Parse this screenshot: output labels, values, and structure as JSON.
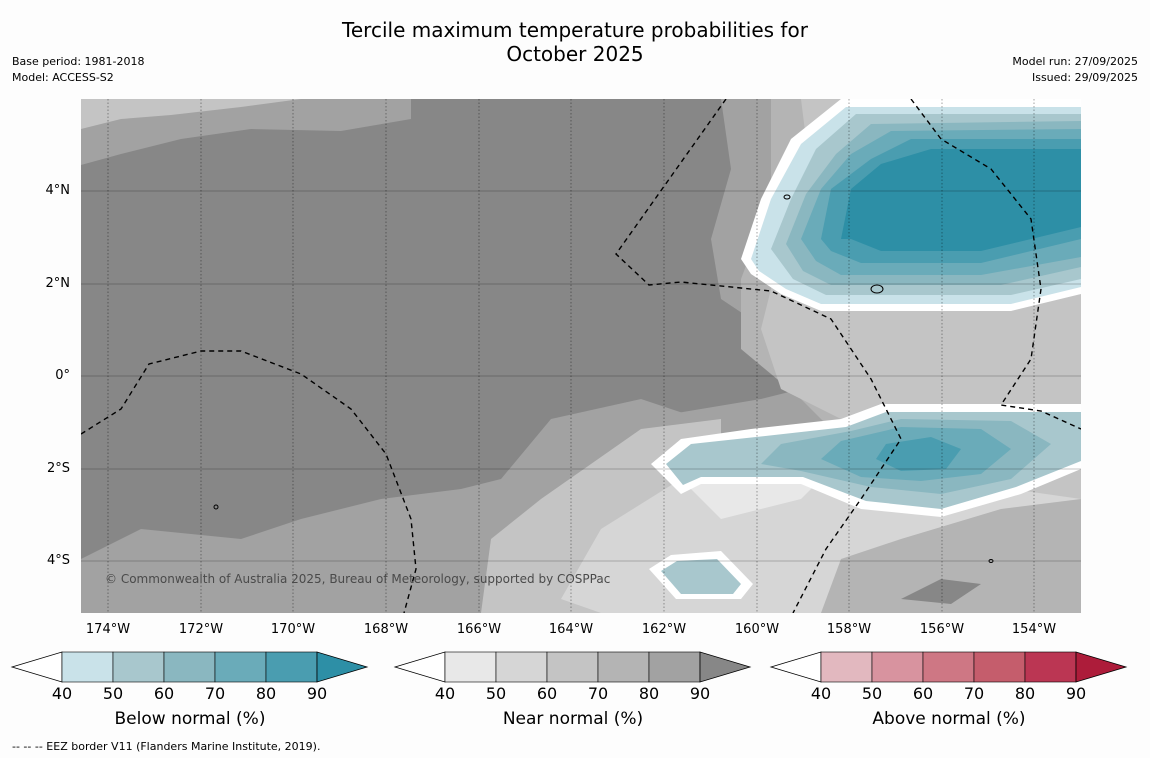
{
  "title_line1": "Tercile maximum temperature probabilities for",
  "title_line2": "October 2025",
  "meta": {
    "base_period": "Base period: 1981-2018",
    "model": "Model: ACCESS-S2",
    "model_run": "Model run: 27/09/2025",
    "issued": "Issued: 29/09/2025"
  },
  "map": {
    "copyright": "© Commonwealth of Australia 2025, Bureau of Meteorology, supported by COSPPac",
    "lat_labels": [
      "4°N",
      "2°N",
      "0°",
      "2°S",
      "4°S"
    ],
    "lon_labels": [
      "174°W",
      "172°W",
      "170°W",
      "168°W",
      "166°W",
      "164°W",
      "162°W",
      "160°W",
      "158°W",
      "156°W",
      "154°W"
    ]
  },
  "colorbars": [
    {
      "label": "Below normal (%)",
      "ticks": [
        "40",
        "50",
        "60",
        "70",
        "80",
        "90"
      ],
      "colors": [
        "#c9e2e9",
        "#a8c7cd",
        "#8ab7c0",
        "#6aabb9",
        "#4a9db0",
        "#2d8fa6"
      ]
    },
    {
      "label": "Near normal (%)",
      "ticks": [
        "40",
        "50",
        "60",
        "70",
        "80",
        "90"
      ],
      "colors": [
        "#e8e8e8",
        "#d6d6d6",
        "#c4c4c4",
        "#b4b4b4",
        "#a2a2a2",
        "#878787"
      ]
    },
    {
      "label": "Above normal (%)",
      "ticks": [
        "40",
        "50",
        "60",
        "70",
        "80",
        "90"
      ],
      "colors": [
        "#e2b8bf",
        "#d8939f",
        "#ce7784",
        "#c55d6c",
        "#bb3653",
        "#ad1c3a"
      ]
    }
  ],
  "footnote": "--  --  -- EEZ border V11 (Flanders Marine Institute, 2019)."
}
